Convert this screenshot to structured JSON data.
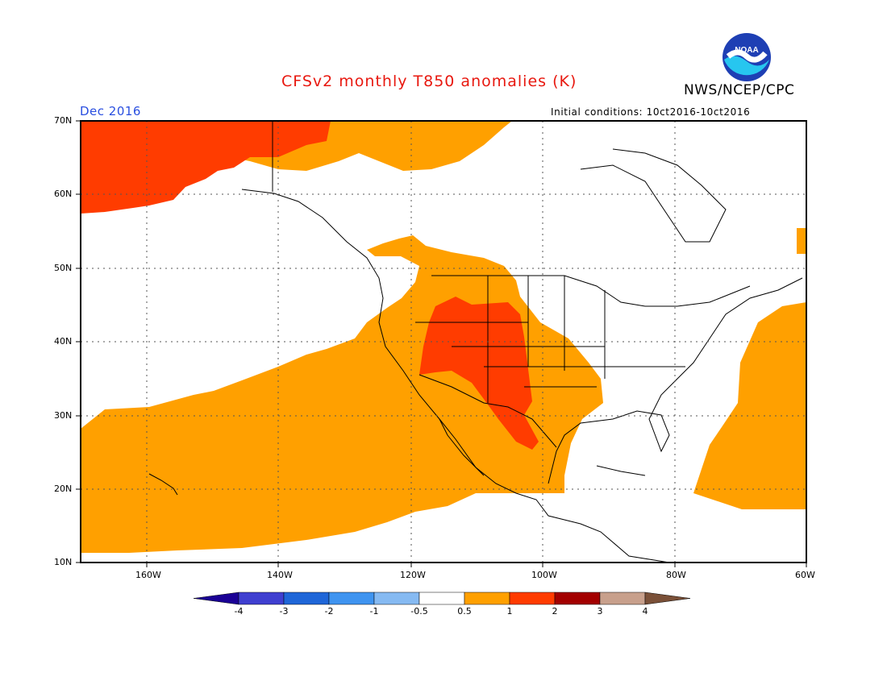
{
  "header": {
    "title": "CFSv2 monthly T850 anomalies (K)",
    "org": "NWS/NCEP/CPC",
    "month": "Dec 2016",
    "initial_conditions": "Initial conditions: 10ct2016-10ct2016",
    "logo_text": "NOAA"
  },
  "map": {
    "projection": "lat-lon",
    "lon_range": [
      -170,
      -60
    ],
    "lat_range": [
      10,
      70
    ],
    "gridlines": "dotted",
    "lat_labels": [
      "70N",
      "60N",
      "50N",
      "40N",
      "30N",
      "20N",
      "10N"
    ],
    "lon_labels": [
      "160W",
      "140W",
      "120W",
      "100W",
      "80W",
      "60W"
    ]
  },
  "colorbar": {
    "colors": [
      "#1a0095",
      "#3f3fd0",
      "#1f66d8",
      "#3f94f0",
      "#86baf2",
      "#ffffff",
      "#ffa000",
      "#ff3c00",
      "#a30000",
      "#c8a08c",
      "#7a5038"
    ],
    "labels": [
      "-4",
      "-3",
      "-2",
      "-1",
      "-0.5",
      "0.5",
      "1",
      "2",
      "3",
      "4"
    ]
  },
  "colors": {
    "anom_0_5_1": "#ffa000",
    "anom_1_2": "#ff3c00",
    "title_red": "#e8180f",
    "month_blue": "#2a4fe0"
  }
}
